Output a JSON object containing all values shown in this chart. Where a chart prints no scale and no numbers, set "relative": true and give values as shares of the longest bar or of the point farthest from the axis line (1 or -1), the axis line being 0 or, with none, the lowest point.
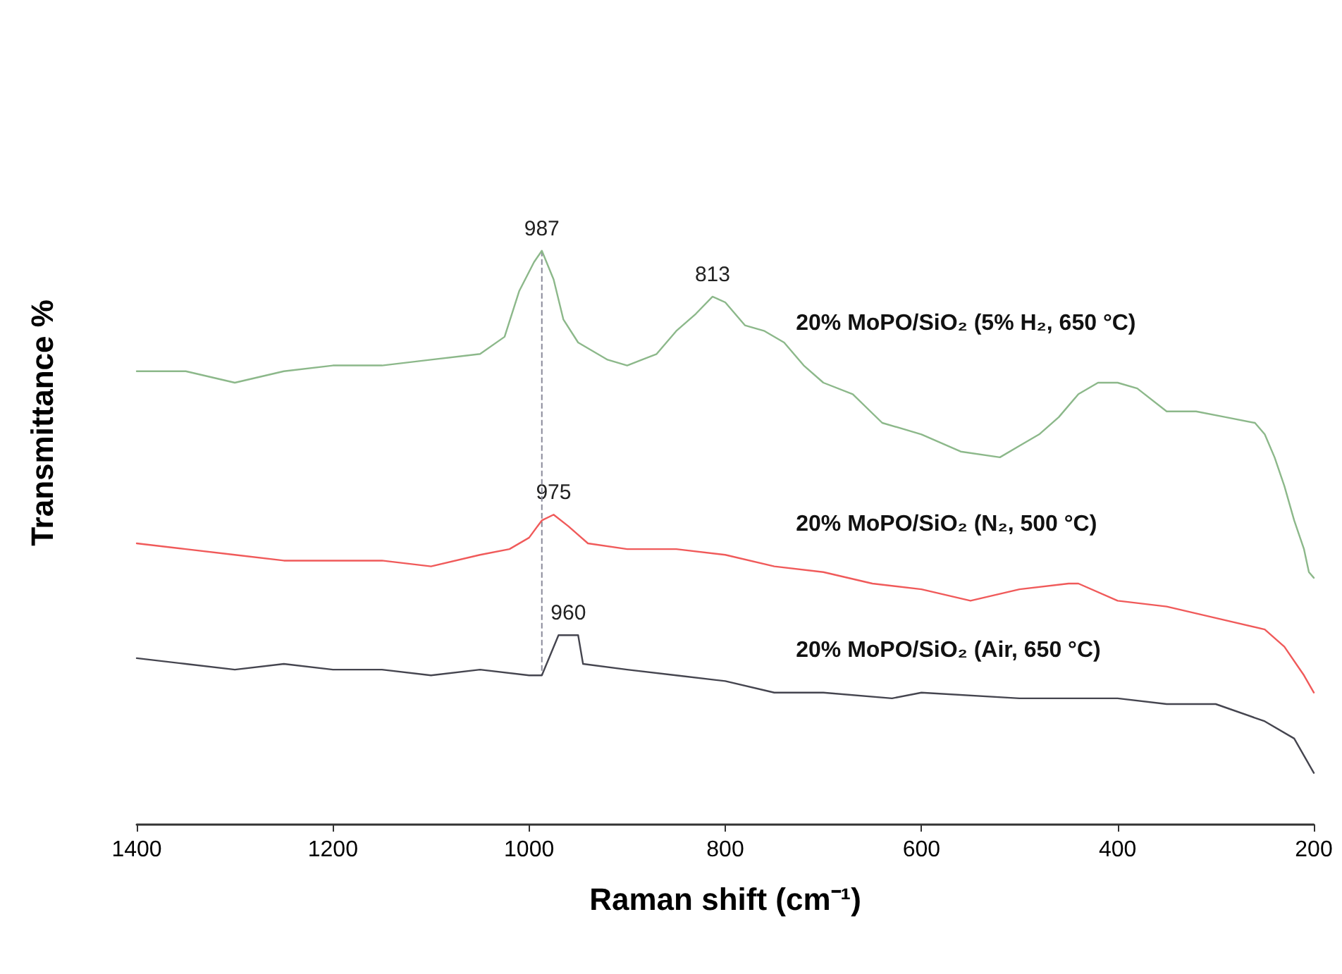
{
  "chart_data": {
    "type": "line",
    "relative": true,
    "xlabel": "Raman shift (cm⁻¹)",
    "ylabel": "Transmittance %",
    "xlim": [
      1400,
      200
    ],
    "xticks": [
      1400,
      1200,
      1000,
      800,
      600,
      400,
      200
    ],
    "grid": false,
    "legend": false,
    "marker": "none",
    "line_style": "solid",
    "series": [
      {
        "name": "20% MoPO/SiO₂ (5% H₂, 650 °C)",
        "color": "#8cb88a",
        "x": [
          1400,
          1350,
          1300,
          1250,
          1200,
          1150,
          1100,
          1050,
          1025,
          1010,
          995,
          987,
          975,
          965,
          950,
          920,
          900,
          870,
          850,
          830,
          813,
          800,
          780,
          760,
          740,
          720,
          700,
          670,
          640,
          600,
          560,
          520,
          500,
          480,
          460,
          440,
          420,
          400,
          380,
          350,
          320,
          290,
          260,
          250,
          240,
          230,
          220,
          210,
          205,
          200
        ],
        "values": [
          0.79,
          0.79,
          0.77,
          0.79,
          0.8,
          0.8,
          0.81,
          0.82,
          0.85,
          0.93,
          0.98,
          1.0,
          0.95,
          0.88,
          0.84,
          0.81,
          0.8,
          0.82,
          0.86,
          0.89,
          0.92,
          0.91,
          0.87,
          0.86,
          0.84,
          0.8,
          0.77,
          0.75,
          0.7,
          0.68,
          0.65,
          0.64,
          0.66,
          0.68,
          0.71,
          0.75,
          0.77,
          0.77,
          0.76,
          0.72,
          0.72,
          0.71,
          0.7,
          0.68,
          0.64,
          0.59,
          0.53,
          0.48,
          0.44,
          0.43
        ]
      },
      {
        "name": "20% MoPO/SiO₂ (N₂, 500 °C)",
        "color": "#f05a5a",
        "x": [
          1400,
          1350,
          1300,
          1250,
          1200,
          1150,
          1100,
          1050,
          1020,
          1000,
          987,
          975,
          960,
          940,
          900,
          850,
          800,
          750,
          700,
          650,
          600,
          550,
          500,
          450,
          440,
          400,
          350,
          300,
          250,
          230,
          210,
          200
        ],
        "values": [
          0.49,
          0.48,
          0.47,
          0.46,
          0.46,
          0.46,
          0.45,
          0.47,
          0.48,
          0.5,
          0.53,
          0.54,
          0.52,
          0.49,
          0.48,
          0.48,
          0.47,
          0.45,
          0.44,
          0.42,
          0.41,
          0.39,
          0.41,
          0.42,
          0.42,
          0.39,
          0.38,
          0.36,
          0.34,
          0.31,
          0.26,
          0.23
        ]
      },
      {
        "name": "20% MoPO/SiO₂ (Air, 650 °C)",
        "color": "#45454f",
        "x": [
          1400,
          1350,
          1300,
          1250,
          1200,
          1150,
          1100,
          1050,
          1000,
          987,
          970,
          960,
          950,
          945,
          900,
          850,
          800,
          750,
          700,
          630,
          600,
          500,
          450,
          400,
          350,
          300,
          250,
          220,
          200
        ],
        "values": [
          0.29,
          0.28,
          0.27,
          0.28,
          0.27,
          0.27,
          0.26,
          0.27,
          0.26,
          0.26,
          0.33,
          0.33,
          0.33,
          0.28,
          0.27,
          0.26,
          0.25,
          0.23,
          0.23,
          0.22,
          0.23,
          0.22,
          0.22,
          0.22,
          0.21,
          0.21,
          0.18,
          0.15,
          0.09
        ]
      }
    ],
    "annotations": [
      {
        "text": "987",
        "x": 987,
        "y": 1.0
      },
      {
        "text": "813",
        "x": 813,
        "y": 0.92
      },
      {
        "text": "975",
        "x": 975,
        "y": 0.54
      },
      {
        "text": "960",
        "x": 960,
        "y": 0.33
      }
    ],
    "ref_lines": [
      {
        "axis": "x",
        "value": 987,
        "line_style": "dashed",
        "color": "#8a8a9a"
      }
    ]
  }
}
